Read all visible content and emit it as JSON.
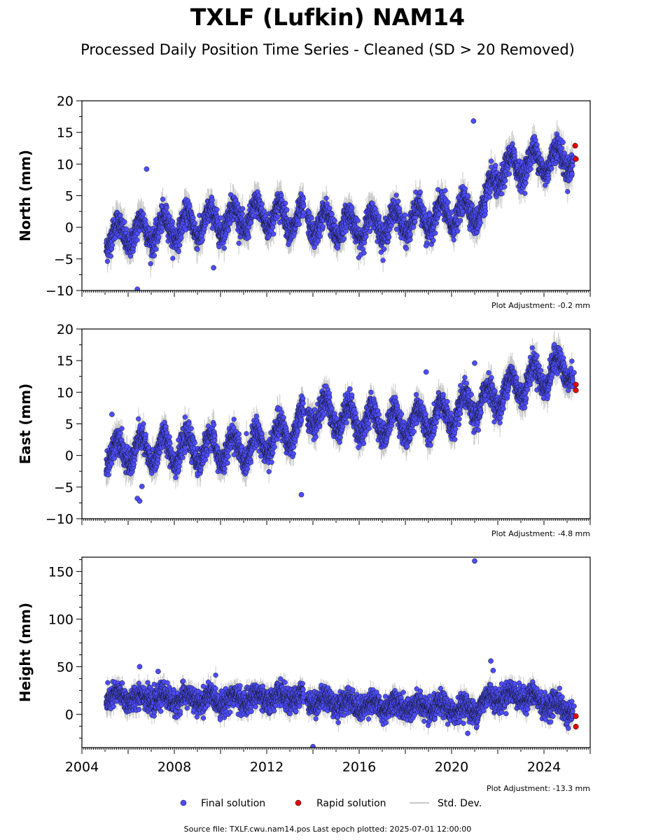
{
  "title": "TXLF (Lufkin) NAM14",
  "subtitle": "Processed Daily Position Time Series - Cleaned (SD > 20 Removed)",
  "footer": "Source file: TXLF.cwu.nam14.pos  Last epoch plotted: 2025-07-01 12:00:00",
  "legend": {
    "final": "Final solution",
    "rapid": "Rapid solution",
    "std": "Std. Dev."
  },
  "colors": {
    "final": "#4d4dff",
    "rapid": "#e00000",
    "std": "#c8c8c8"
  },
  "chart_data": [
    {
      "type": "scatter",
      "panel": "north",
      "ylabel": "North (mm)",
      "adjustment": "Plot Adjustment: -0.2 mm",
      "xlim": [
        2004,
        2026
      ],
      "ylim": [
        -10,
        20
      ],
      "yticks": [
        -10,
        -5,
        0,
        5,
        10,
        15,
        20
      ],
      "ytick_labels": [
        "−10",
        "−5",
        "0",
        "5",
        "10",
        "15",
        "20"
      ],
      "grid": false,
      "trend": [
        [
          2005.0,
          -1.5
        ],
        [
          2008.0,
          0.0
        ],
        [
          2012.0,
          2.0
        ],
        [
          2014.5,
          0.5
        ],
        [
          2016.0,
          0.0
        ],
        [
          2019.0,
          1.5
        ],
        [
          2021.5,
          3.0
        ],
        [
          2021.8,
          8.0
        ],
        [
          2023.0,
          10.0
        ],
        [
          2025.0,
          11.0
        ]
      ],
      "seasonal_amp": 2.0,
      "noise": 1.0,
      "sd": 1.8,
      "outliers": [
        [
          2006.4,
          -9.8
        ],
        [
          2006.8,
          9.2
        ],
        [
          2009.7,
          -6.4
        ],
        [
          2018.9,
          -2.9
        ],
        [
          2020.95,
          16.8
        ]
      ],
      "rapid": [
        [
          2025.35,
          12.9
        ],
        [
          2025.38,
          10.8
        ]
      ],
      "last_final": [
        [
          2025.3,
          11.0
        ]
      ]
    },
    {
      "type": "scatter",
      "panel": "east",
      "ylabel": "East (mm)",
      "adjustment": "Plot Adjustment: -4.8 mm",
      "xlim": [
        2004,
        2026
      ],
      "ylim": [
        -10,
        20
      ],
      "yticks": [
        -10,
        -5,
        0,
        5,
        10,
        15,
        20
      ],
      "ytick_labels": [
        "−10",
        "−5",
        "0",
        "5",
        "10",
        "15",
        "20"
      ],
      "grid": false,
      "trend": [
        [
          2005.0,
          0.5
        ],
        [
          2008.0,
          1.0
        ],
        [
          2011.0,
          1.0
        ],
        [
          2013.0,
          3.5
        ],
        [
          2014.0,
          7.0
        ],
        [
          2016.0,
          5.5
        ],
        [
          2018.0,
          5.0
        ],
        [
          2020.0,
          6.5
        ],
        [
          2022.0,
          9.5
        ],
        [
          2023.0,
          11.5
        ],
        [
          2025.0,
          14.0
        ]
      ],
      "seasonal_amp": 2.2,
      "noise": 1.0,
      "sd": 1.8,
      "outliers": [
        [
          2005.3,
          6.5
        ],
        [
          2006.4,
          -6.8
        ],
        [
          2006.5,
          -7.2
        ],
        [
          2006.6,
          -4.9
        ],
        [
          2013.5,
          -6.2
        ],
        [
          2015.6,
          10.5
        ],
        [
          2018.9,
          13.2
        ],
        [
          2021.0,
          14.6
        ]
      ],
      "rapid": [
        [
          2025.38,
          11.2
        ],
        [
          2025.38,
          10.3
        ]
      ],
      "last_final": [
        [
          2025.3,
          13.1
        ]
      ]
    },
    {
      "type": "scatter",
      "panel": "height",
      "ylabel": "Height (mm)",
      "adjustment": "Plot Adjustment: -13.3 mm",
      "xlim": [
        2004,
        2026
      ],
      "ylim": [
        -35,
        165
      ],
      "yticks": [
        0,
        50,
        100,
        150
      ],
      "ytick_labels": [
        "0",
        "50",
        "100",
        "150"
      ],
      "xticks": [
        2004,
        2008,
        2012,
        2016,
        2020,
        2024
      ],
      "xtick_labels": [
        "2004",
        "2008",
        "2012",
        "2016",
        "2020",
        "2024"
      ],
      "grid": false,
      "trend": [
        [
          2005.0,
          18.0
        ],
        [
          2010.0,
          15.0
        ],
        [
          2013.0,
          18.0
        ],
        [
          2016.0,
          10.0
        ],
        [
          2021.0,
          5.0
        ],
        [
          2021.7,
          18.0
        ],
        [
          2023.0,
          20.0
        ],
        [
          2025.0,
          5.0
        ]
      ],
      "seasonal_amp": 5.0,
      "noise": 6.0,
      "sd": 8.0,
      "outliers": [
        [
          2006.5,
          50.0
        ],
        [
          2007.3,
          45.0
        ],
        [
          2014.0,
          -34.0
        ],
        [
          2020.7,
          -20.0
        ],
        [
          2021.0,
          161.0
        ],
        [
          2021.7,
          56.0
        ],
        [
          2021.8,
          46.0
        ]
      ],
      "rapid": [
        [
          2025.38,
          -2.0
        ],
        [
          2025.38,
          -13.0
        ]
      ],
      "last_final": [
        [
          2025.3,
          8.5
        ]
      ]
    }
  ]
}
